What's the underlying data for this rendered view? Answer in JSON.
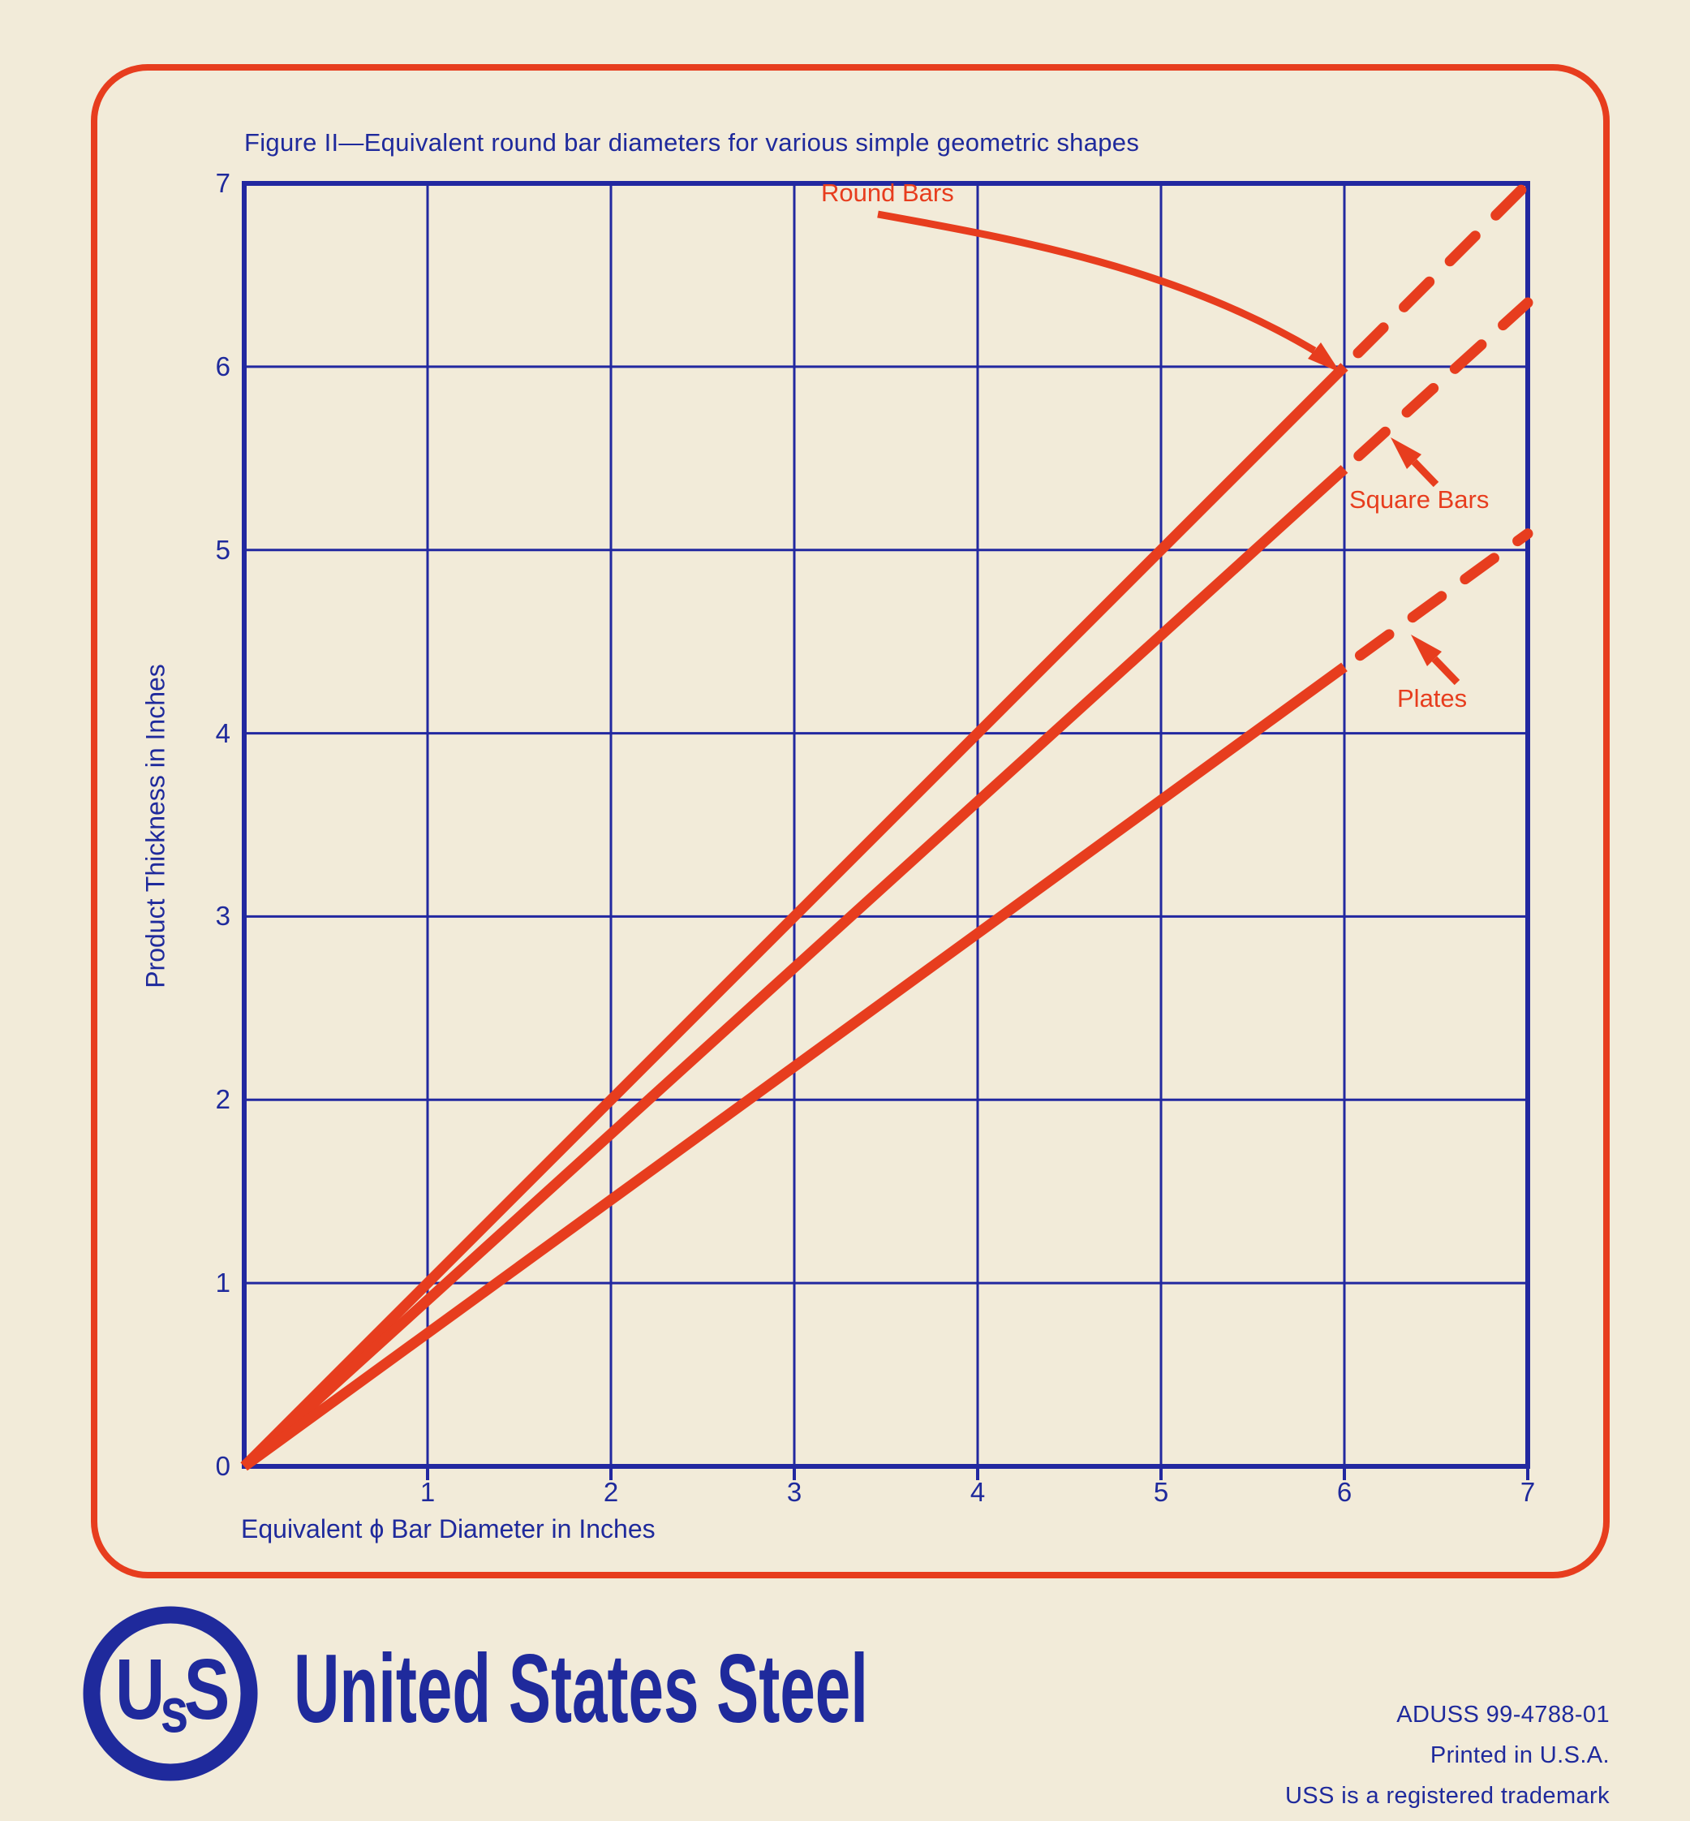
{
  "title": "Figure II—Equivalent round bar diameters for various simple geometric shapes",
  "axes": {
    "x": {
      "title": "Equivalent ϕ Bar Diameter in Inches",
      "ticks": [
        "1",
        "2",
        "3",
        "4",
        "5",
        "6",
        "7"
      ]
    },
    "y": {
      "title": "Product Thickness in Inches",
      "ticks": [
        "0",
        "1",
        "2",
        "3",
        "4",
        "5",
        "6",
        "7"
      ]
    }
  },
  "series_labels": {
    "round": "Round Bars",
    "square": "Square Bars",
    "plates": "Plates"
  },
  "footer": {
    "logo": {
      "first": "U",
      "middle": "s",
      "last": "S"
    },
    "company": "United States Steel",
    "doc_code": "ADUSS 99-4788-01",
    "printed": "Printed in U.S.A.",
    "trademark": "USS is a registered trademark"
  },
  "colors": {
    "background": "#f2ebd9",
    "blue": "#1f2a9c",
    "grid_blue": "#2228a0",
    "red": "#e73d1e"
  },
  "chart_data": {
    "type": "line",
    "title": "Figure II—Equivalent round bar diameters for various simple geometric shapes",
    "xlabel": "Equivalent ϕ Bar Diameter in Inches",
    "ylabel": "Product Thickness in Inches",
    "xlim": [
      0,
      7
    ],
    "ylim": [
      0,
      7
    ],
    "grid": true,
    "grid_step": 1,
    "legend_position": "annotated-on-lines",
    "line_color": "#e73d1e",
    "series": [
      {
        "name": "Round Bars",
        "slope": 1.0,
        "solid_from_x": 0,
        "solid_to_x": 6,
        "dashed_to_x": 7,
        "points": [
          [
            0,
            0
          ],
          [
            1,
            1
          ],
          [
            2,
            2
          ],
          [
            3,
            3
          ],
          [
            4,
            4
          ],
          [
            5,
            5
          ],
          [
            6,
            6
          ],
          [
            7,
            7
          ]
        ]
      },
      {
        "name": "Square Bars",
        "slope": 0.907,
        "solid_from_x": 0,
        "solid_to_x": 6,
        "dashed_to_x": 7,
        "points": [
          [
            0,
            0
          ],
          [
            1,
            0.91
          ],
          [
            2,
            1.81
          ],
          [
            3,
            2.72
          ],
          [
            4,
            3.63
          ],
          [
            5,
            4.54
          ],
          [
            6,
            5.44
          ],
          [
            7,
            6.35
          ]
        ]
      },
      {
        "name": "Plates",
        "slope": 0.727,
        "solid_from_x": 0,
        "solid_to_x": 6,
        "dashed_to_x": 7,
        "points": [
          [
            0,
            0
          ],
          [
            1,
            0.73
          ],
          [
            2,
            1.45
          ],
          [
            3,
            2.18
          ],
          [
            4,
            2.91
          ],
          [
            5,
            3.64
          ],
          [
            6,
            4.36
          ],
          [
            7,
            5.09
          ]
        ]
      }
    ]
  }
}
